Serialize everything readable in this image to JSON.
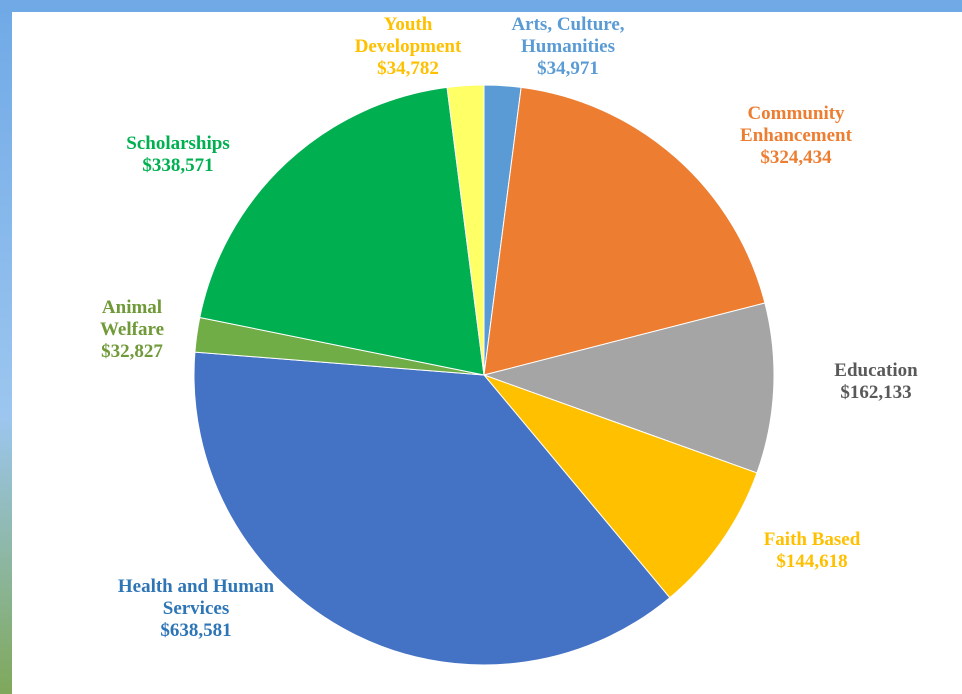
{
  "chart_data": {
    "type": "pie",
    "categories": [
      "Arts, Culture, Humanities",
      "Community Enhancement",
      "Education",
      "Faith Based",
      "Health and Human Services",
      "Animal Welfare",
      "Scholarships",
      "Youth Development"
    ],
    "values": [
      34971,
      324434,
      162133,
      144618,
      638581,
      32827,
      338571,
      34782
    ],
    "value_labels": [
      "$34,971",
      "$324,434",
      "$162,133",
      "$144,618",
      "$638,581",
      "$32,827",
      "$338,571",
      "$34,782"
    ],
    "colors": [
      "#5b9bd5",
      "#ed7d31",
      "#a5a5a5",
      "#ffc000",
      "#4472c4",
      "#70ad47",
      "#00b050",
      "#ffff66"
    ],
    "label_colors": [
      "#5b9bd5",
      "#ed7d31",
      "#595959",
      "#ffc000",
      "#2e75b6",
      "#6f9a37",
      "#00b050",
      "#ffc000"
    ]
  }
}
